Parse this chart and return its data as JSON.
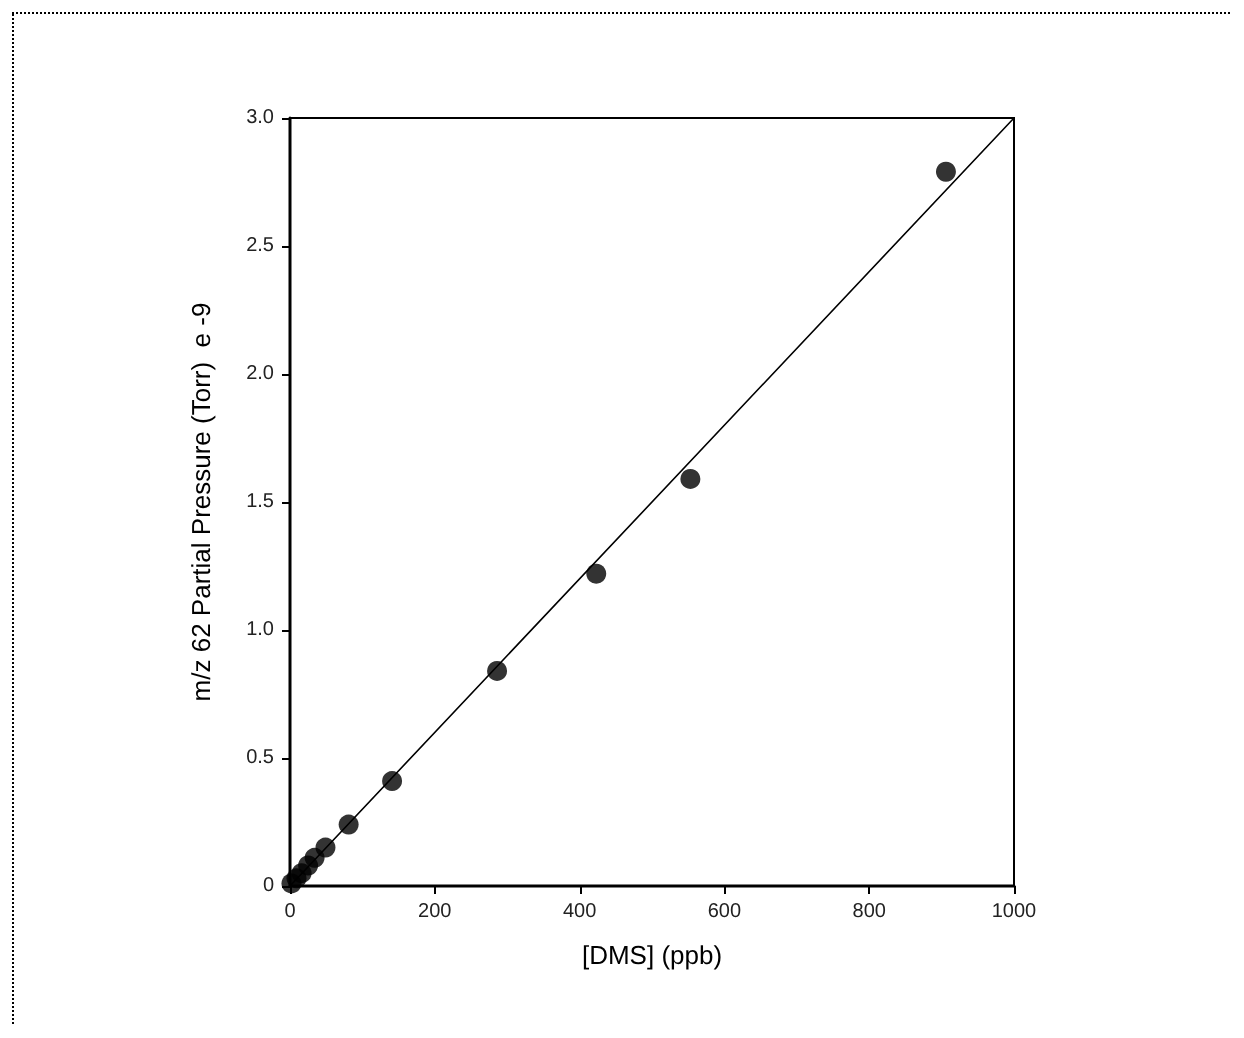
{
  "chart_data": {
    "type": "scatter",
    "xlabel": "[DMS] (ppb)",
    "ylabel": "m/z 62 Partial Pressure (Torr)  e -9",
    "xlim": [
      0,
      1000
    ],
    "xticks": [
      0,
      200,
      400,
      600,
      800,
      1000
    ],
    "ylim": [
      0,
      3.0
    ],
    "yticks": [
      0,
      {
        "value": 0.5,
        "label": "0.5"
      },
      {
        "value": 1,
        "label": "1.0"
      },
      {
        "value": 1.5,
        "label": "1.5"
      },
      {
        "value": 2,
        "label": "2.0"
      },
      {
        "value": 2.5,
        "label": "2.5"
      },
      {
        "value": 3,
        "label": "3.0"
      }
    ],
    "grid": false,
    "marker": "circle",
    "series": [
      {
        "color": "#000000",
        "x": [
          2,
          9,
          16,
          25,
          34,
          49,
          81,
          141,
          286,
          423,
          553,
          906
        ],
        "values": [
          0.01,
          0.03,
          0.05,
          0.08,
          0.11,
          0.15,
          0.24,
          0.41,
          0.84,
          1.22,
          1.59,
          2.79
        ]
      },
      {
        "type": "line",
        "color": "#000000",
        "line_style": "solid",
        "marker": "none",
        "x": [
          0,
          1000
        ],
        "values": [
          0,
          3.0
        ]
      }
    ]
  }
}
